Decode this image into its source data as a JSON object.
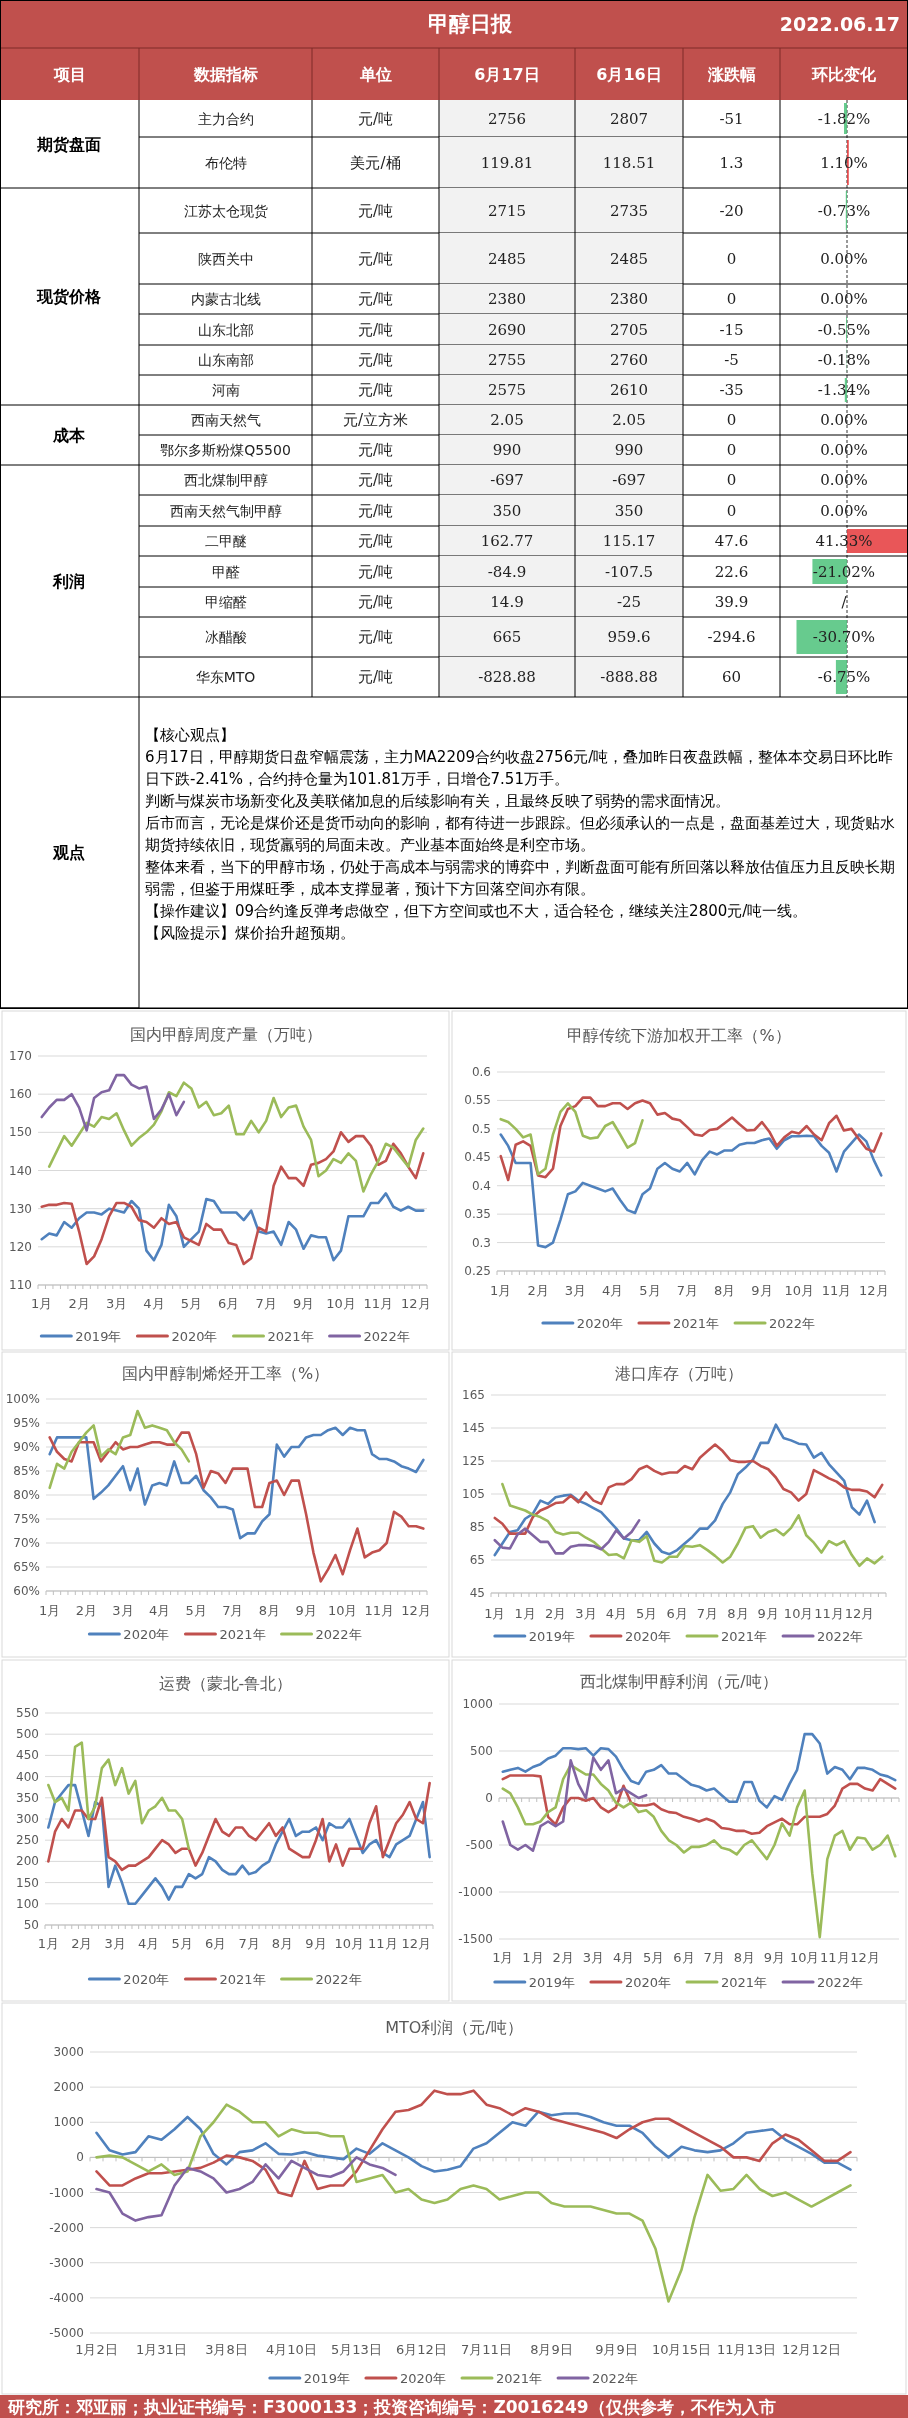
{
  "chart_data": [
    {
      "type": "other",
      "title": "甲醇日报",
      "subtitle": "2022.06.17",
      "cell_labels": [
        [
          "项目",
          "数据指标",
          "单位",
          "6月17日",
          "6月16日",
          "涨跌幅",
          "环比变化"
        ],
        [
          "期货盘面",
          "主力合约",
          "元/吨",
          "2756",
          "2807",
          "-51"
        ],
        [
          null,
          "布伦特",
          "美元/桶",
          "119.81",
          "118.51",
          "1.3"
        ],
        [
          "现货价格",
          "江苏太仓现货",
          "元/吨",
          "2715",
          "2735",
          "-20"
        ],
        [
          null,
          "陕西关中",
          "元/吨",
          "2485",
          "2485",
          "0"
        ],
        [
          null,
          "内蒙古北线",
          "元/吨",
          "2380",
          "2380",
          "0"
        ],
        [
          null,
          "山东北部",
          "元/吨",
          "2690",
          "2705",
          "-15"
        ],
        [
          null,
          "山东南部",
          "元/吨",
          "2755",
          "2760",
          "-5"
        ],
        [
          null,
          "河南",
          "元/吨",
          "2575",
          "2610",
          "-35"
        ],
        [
          "成本",
          "西南天然气",
          "元/立方米",
          "2.05",
          "2.05",
          "0"
        ],
        [
          null,
          "鄂尔多斯粉煤Q5500",
          "元/吨",
          "990",
          "990",
          "0"
        ],
        [
          "利润",
          "西北煤制甲醇",
          "元/吨",
          "-697",
          "-697",
          "0"
        ],
        [
          null,
          "西南天然气制甲醇",
          "元/吨",
          "350",
          "350",
          "0"
        ],
        [
          null,
          "二甲醚",
          "元/吨",
          "162.77",
          "115.17",
          "47.6"
        ],
        [
          null,
          "甲醛",
          "元/吨",
          "-84.9",
          "-107.5",
          "22.6"
        ],
        [
          null,
          "甲缩醛",
          "元/吨",
          "14.9",
          "-25",
          "39.9"
        ],
        [
          null,
          "冰醋酸",
          "元/吨",
          "665",
          "959.6",
          "-294.6"
        ],
        [
          null,
          "华东MTO",
          "元/吨",
          "-828.88",
          "-888.88",
          "60"
        ],
        [
          "观点"
        ]
      ],
      "values": [
        -1.82,
        1.1,
        -0.73,
        0,
        0,
        -0.55,
        -0.18,
        -1.34,
        0,
        0,
        0,
        0,
        41.33,
        -21.02,
        null,
        -30.7,
        -6.75
      ],
      "value_labels": [
        "-1.82%",
        "1.10%",
        "-0.73%",
        "0.00%",
        "0.00%",
        "-0.55%",
        "-0.18%",
        "-1.34%",
        "0.00%",
        "0.00%",
        "0.00%",
        "0.00%",
        "41.33%",
        "-21.02%",
        "/",
        "-30.70%",
        "-6.75%"
      ],
      "colors": [
        "#4cc27a",
        "#e5383b",
        "#4cc27a",
        null,
        null,
        "#4cc27a",
        "#4cc27a",
        "#4cc27a",
        null,
        null,
        null,
        null,
        "#e5383b",
        "#4cc27a",
        null,
        "#4cc27a",
        "#4cc27a"
      ],
      "annotations": [
        "【核心观点】",
        "6月17日，甲醇期货日盘窄幅震荡，主力MA2209合约收盘2756元/吨，叠加昨日夜盘跌幅，整体本交易日环比昨日下跌-2.41%，合约持仓量为101.81万手，日增仓7.51万手。",
        "判断与煤炭市场新变化及美联储加息的后续影响有关，且最终反映了弱势的需求面情况。",
        "后市而言，无论是煤价还是货币动向的影响，都有待进一步跟踪。但必须承认的一点是，盘面基差过大，现货贴水期货持续依旧，现货羸弱的局面未改。产业基本面始终是利空市场。",
        "整体来看，当下的甲醇市场，仍处于高成本与弱需求的博弈中，判断盘面可能有所回落以释放估值压力且反映长期弱需，但鉴于用煤旺季，成本支撑显著，预计下方回落空间亦有限。",
        "【操作建议】09合约逢反弹考虑做空，但下方空间或也不大，适合轻仓，继续关注2800元/吨一线。",
        "【风险提示】煤价抬升超预期。"
      ]
    },
    {
      "type": "line",
      "title": "国内甲醇周度产量（万吨）",
      "legend": "bottom",
      "grid": "y",
      "ylim": [
        110,
        170
      ],
      "yticks": [
        110,
        120,
        130,
        140,
        150,
        160,
        170
      ],
      "categories": [
        "1月",
        null,
        null,
        null,
        null,
        "2月",
        null,
        null,
        null,
        null,
        "3月",
        null,
        null,
        null,
        null,
        "4月",
        null,
        null,
        null,
        null,
        "5月",
        null,
        null,
        null,
        null,
        "6月",
        null,
        null,
        null,
        null,
        "7月",
        null,
        null,
        null,
        null,
        "9月",
        null,
        null,
        null,
        null,
        "10月",
        null,
        null,
        null,
        null,
        "11月",
        null,
        null,
        null,
        null,
        "12月",
        null
      ],
      "series": [
        {
          "name": "2019年",
          "color": "#4f81bd",
          "values": [
            122,
            123.5,
            123,
            126.5,
            125,
            127.5,
            129,
            129,
            128.5,
            130,
            129.5,
            129,
            132,
            130,
            119,
            116.5,
            120.5,
            131,
            128,
            120,
            122,
            124,
            132.5,
            132,
            129,
            129,
            129,
            127,
            129.5,
            124,
            123.5,
            124,
            120.5,
            126.5,
            124.5,
            119.5,
            123,
            122.5,
            122.5,
            116.5,
            119,
            128,
            128,
            128,
            131.5,
            131.5,
            134,
            130.5,
            129.5,
            130.5,
            129.5,
            129.5
          ]
        },
        {
          "name": "2020年",
          "color": "#c0504d",
          "values": [
            130.5,
            131,
            131,
            131.5,
            131.3,
            124,
            115.5,
            117.5,
            122,
            128,
            131.5,
            131.5,
            130.5,
            127,
            126.5,
            125,
            127.5,
            126,
            126.5,
            122.5,
            121.5,
            120.5,
            126,
            124.5,
            124.5,
            121,
            120.5,
            115.5,
            117,
            125,
            124,
            136,
            141,
            138,
            138,
            136,
            141.5,
            142,
            143,
            145,
            150,
            147.5,
            149,
            149,
            146.5,
            141.5,
            142.5,
            147,
            144.5,
            141,
            138,
            144.5
          ]
        },
        {
          "name": "2021年",
          "color": "#9bbb59",
          "values": [
            null,
            141,
            145,
            149,
            146.5,
            149.5,
            152.5,
            151.5,
            154,
            153.5,
            155,
            150.5,
            146.5,
            148.5,
            150,
            152,
            155.5,
            160.5,
            159.5,
            163,
            161.5,
            156.5,
            158,
            154.5,
            155,
            157,
            149.5,
            149.5,
            153,
            150,
            153,
            159,
            154,
            156.5,
            157,
            151.5,
            148,
            138.5,
            140,
            143,
            142,
            144.5,
            142.5,
            134.5,
            139,
            142.5,
            147,
            146,
            143.5,
            141,
            148,
            151
          ]
        },
        {
          "name": "2022年",
          "color": "#8064a2",
          "values": [
            154,
            156.5,
            158.5,
            158.5,
            160,
            156.5,
            150.5,
            159,
            160.5,
            161,
            165,
            165,
            162.5,
            161.5,
            162,
            153.5,
            156,
            160,
            154.5,
            158,
            null,
            null,
            null,
            null,
            null,
            null,
            null,
            null,
            null,
            null,
            null,
            null,
            null,
            null,
            null,
            null,
            null,
            null,
            null,
            null,
            null,
            null,
            null,
            null,
            null,
            null,
            null,
            null,
            null,
            null,
            null,
            null
          ]
        }
      ]
    },
    {
      "type": "line",
      "title": "甲醇传统下游加权开工率（%）",
      "legend": "bottom",
      "grid": "y",
      "ylim": [
        0.25,
        0.6
      ],
      "yticks": [
        0.25,
        0.3,
        0.35,
        0.4,
        0.45,
        0.5,
        0.55,
        0.6
      ],
      "categories": [
        "1月",
        null,
        null,
        null,
        null,
        "2月",
        null,
        null,
        null,
        null,
        "3月",
        null,
        null,
        null,
        null,
        "4月",
        null,
        null,
        null,
        null,
        "5月",
        null,
        null,
        null,
        null,
        "7月",
        null,
        null,
        null,
        null,
        "8月",
        null,
        null,
        null,
        null,
        "9月",
        null,
        null,
        null,
        null,
        "10月",
        null,
        null,
        null,
        null,
        "11月",
        null,
        null,
        null,
        null,
        "12月",
        null
      ],
      "series": [
        {
          "name": "2020年",
          "color": "#4f81bd",
          "values": [
            0.49,
            0.47,
            0.44,
            0.44,
            0.44,
            0.295,
            0.292,
            0.3,
            0.34,
            0.385,
            0.39,
            0.405,
            0.4,
            0.395,
            0.39,
            0.395,
            0.375,
            0.357,
            0.352,
            0.385,
            0.395,
            0.43,
            0.44,
            0.43,
            0.425,
            0.44,
            0.42,
            0.445,
            0.46,
            0.455,
            0.462,
            0.462,
            0.472,
            0.475,
            0.475,
            0.48,
            0.483,
            0.465,
            0.48,
            0.487,
            0.487,
            0.488,
            0.487,
            0.47,
            0.458,
            0.425,
            0.46,
            0.475,
            0.49,
            0.478,
            0.445,
            0.418
          ]
        },
        {
          "name": "2021年",
          "color": "#c0504d",
          "values": [
            0.452,
            0.41,
            0.472,
            0.478,
            0.47,
            0.418,
            0.415,
            0.43,
            0.505,
            0.535,
            0.54,
            0.555,
            0.555,
            0.54,
            0.54,
            0.545,
            0.545,
            0.535,
            0.545,
            0.55,
            0.545,
            0.525,
            0.528,
            0.518,
            0.515,
            0.503,
            0.49,
            0.488,
            0.498,
            0.5,
            0.51,
            0.52,
            0.508,
            0.497,
            0.498,
            0.512,
            0.495,
            0.47,
            0.485,
            0.495,
            0.492,
            0.505,
            0.49,
            0.48,
            0.51,
            0.523,
            0.497,
            0.5,
            0.482,
            0.465,
            0.46,
            0.492
          ]
        },
        {
          "name": "2022年",
          "color": "#9bbb59",
          "values": [
            0.517,
            0.512,
            0.5,
            0.485,
            0.49,
            0.42,
            0.43,
            0.49,
            0.53,
            0.545,
            0.53,
            0.488,
            0.483,
            0.485,
            0.505,
            0.512,
            0.49,
            0.467,
            0.475,
            0.515,
            null,
            null,
            null,
            null,
            null,
            null,
            null,
            null,
            null,
            null,
            null,
            null,
            null,
            null,
            null,
            null,
            null,
            null,
            null,
            null,
            null,
            null,
            null,
            null,
            null,
            null,
            null,
            null,
            null,
            null,
            null,
            null
          ]
        }
      ]
    },
    {
      "type": "line",
      "title": "国内甲醇制烯烃开工率（%）",
      "legend": "bottom",
      "grid": "y",
      "ylim": [
        60,
        100
      ],
      "yticks": [
        {
          "value": 60,
          "label": "60%"
        },
        {
          "value": 65,
          "label": "65%"
        },
        {
          "value": 70,
          "label": "70%"
        },
        {
          "value": 75,
          "label": "75%"
        },
        {
          "value": 80,
          "label": "80%"
        },
        {
          "value": 85,
          "label": "85%"
        },
        {
          "value": 90,
          "label": "90%"
        },
        {
          "value": 95,
          "label": "95%"
        },
        {
          "value": 100,
          "label": "100%"
        }
      ],
      "categories": [
        "1月",
        null,
        null,
        null,
        null,
        "2月",
        null,
        null,
        null,
        null,
        "3月",
        null,
        null,
        null,
        null,
        "4月",
        null,
        null,
        null,
        null,
        "5月",
        null,
        null,
        null,
        null,
        "7月",
        null,
        null,
        null,
        null,
        "8月",
        null,
        null,
        null,
        null,
        "9月",
        null,
        null,
        null,
        null,
        "10月",
        null,
        null,
        null,
        null,
        "11月",
        null,
        null,
        null,
        null,
        "12月",
        null
      ],
      "series": [
        {
          "name": "2020年",
          "color": "#4f81bd",
          "values": [
            88.5,
            92,
            92,
            92,
            92,
            92,
            79.2,
            80.5,
            82,
            84,
            86,
            81,
            85.5,
            78,
            82,
            82.5,
            82,
            87,
            82.5,
            82.5,
            84,
            81,
            79.5,
            77.5,
            77.5,
            77,
            71,
            72,
            72,
            74.5,
            76,
            90.5,
            88,
            90,
            90,
            92,
            92.5,
            92.5,
            93.5,
            94,
            92.5,
            94,
            93.5,
            93.5,
            88.5,
            87.5,
            87.5,
            87,
            86,
            85.5,
            84.8,
            87.3
          ]
        },
        {
          "name": "2021年",
          "color": "#c0504d",
          "values": [
            92,
            89,
            87.5,
            87,
            91,
            91,
            91,
            87,
            89,
            91,
            89.5,
            90,
            90,
            90.5,
            91,
            91,
            90.5,
            90.5,
            93,
            93,
            88.5,
            81.5,
            85,
            84.5,
            82.5,
            85.5,
            85.5,
            85.5,
            77.5,
            77.5,
            82.5,
            83,
            80,
            83,
            83,
            76,
            68,
            62,
            64.5,
            67.5,
            63.5,
            68.5,
            73,
            67,
            68,
            68.5,
            70,
            76.5,
            75.5,
            73.5,
            73.5,
            73
          ]
        },
        {
          "name": "2022年",
          "color": "#9bbb59",
          "values": [
            81.5,
            86.5,
            85.5,
            89,
            91,
            93,
            94.5,
            88,
            89.5,
            88.5,
            92,
            92.5,
            97.5,
            94,
            94.5,
            94,
            93.5,
            91,
            89.5,
            87,
            null,
            null,
            null,
            null,
            null,
            null,
            null,
            null,
            null,
            null,
            null,
            null,
            null,
            null,
            null,
            null,
            null,
            null,
            null,
            null,
            null,
            null,
            null,
            null,
            null,
            null,
            null,
            null,
            null,
            null,
            null,
            null
          ]
        }
      ]
    },
    {
      "type": "line",
      "title": "港口库存（万吨）",
      "legend": "bottom",
      "grid": "y",
      "ylim": [
        45,
        165
      ],
      "yticks": [
        45,
        65,
        85,
        105,
        125,
        145,
        165
      ],
      "categories": [
        "1月",
        null,
        null,
        null,
        "1月",
        null,
        null,
        null,
        "2月",
        null,
        null,
        null,
        "3月",
        null,
        null,
        null,
        "4月",
        null,
        null,
        null,
        "5月",
        null,
        null,
        null,
        "6月",
        null,
        null,
        null,
        "7月",
        null,
        null,
        null,
        "8月",
        null,
        null,
        null,
        "9月",
        null,
        null,
        null,
        "10月",
        null,
        null,
        null,
        "11月",
        null,
        null,
        null,
        "12月",
        null,
        null,
        null
      ],
      "series": [
        {
          "name": "2019年",
          "color": "#4f81bd",
          "values": [
            68,
            75,
            82,
            83,
            90,
            93,
            101,
            99,
            103,
            104,
            104.5,
            101,
            99,
            96.5,
            94,
            89,
            84,
            78,
            77,
            77,
            82,
            75,
            70,
            68.5,
            71,
            75,
            79,
            84,
            84,
            89,
            99,
            106,
            117,
            121,
            126,
            136,
            136,
            147,
            139,
            137.5,
            135.5,
            135,
            127,
            130,
            123,
            118,
            113,
            97,
            92.5,
            101,
            88,
            null
          ]
        },
        {
          "name": "2020年",
          "color": "#c0504d",
          "values": [
            90.5,
            87,
            81,
            81,
            81,
            91,
            95,
            97,
            99.5,
            100,
            104,
            100,
            106,
            101,
            99,
            109,
            111,
            111,
            114,
            120,
            122,
            119,
            117,
            118,
            118,
            122,
            120,
            127,
            131,
            135,
            131,
            125.5,
            124.5,
            124.5,
            125,
            122,
            120,
            115,
            108,
            106,
            101,
            105,
            119.5,
            117,
            114.5,
            112.5,
            109,
            107.5,
            107.5,
            106.5,
            103,
            110.5
          ]
        },
        {
          "name": "2021年",
          "color": "#9bbb59",
          "values": [
            null,
            111,
            98,
            96.5,
            95,
            92.5,
            91,
            88.5,
            82,
            80.5,
            81.5,
            81.5,
            78.5,
            76,
            72,
            68,
            68.5,
            66,
            77,
            76,
            79.5,
            64.5,
            63.5,
            67,
            67,
            73.5,
            73,
            74,
            71,
            67.5,
            63.5,
            67,
            75,
            84.5,
            85.5,
            78.5,
            82,
            83.5,
            80,
            84.5,
            92,
            80,
            75.5,
            69.5,
            76.5,
            74,
            76.5,
            68,
            61.5,
            66,
            63,
            67
          ]
        },
        {
          "name": "2022年",
          "color": "#8064a2",
          "values": [
            77,
            72.5,
            72,
            80.5,
            84,
            80,
            76,
            76,
            69,
            69,
            73,
            74,
            74,
            73.5,
            71.5,
            76,
            83,
            78,
            82,
            89,
            null,
            null,
            null,
            null,
            null,
            null,
            null,
            null,
            null,
            null,
            null,
            null,
            null,
            null,
            null,
            null,
            null,
            null,
            null,
            null,
            null,
            null,
            null,
            null,
            null,
            null,
            null,
            null,
            null,
            null,
            null,
            null
          ]
        }
      ]
    },
    {
      "type": "line",
      "title": "运费（蒙北-鲁北）",
      "legend": "bottom",
      "grid": "y",
      "ylim": [
        50,
        550
      ],
      "yticks": [
        50,
        100,
        150,
        200,
        250,
        300,
        350,
        400,
        450,
        500,
        550
      ],
      "categories": [
        "1月",
        null,
        null,
        null,
        null,
        "2月",
        null,
        null,
        null,
        null,
        "3月",
        null,
        null,
        null,
        null,
        "4月",
        null,
        null,
        null,
        null,
        "5月",
        null,
        null,
        null,
        null,
        "6月",
        null,
        null,
        null,
        null,
        "7月",
        null,
        null,
        null,
        null,
        "8月",
        null,
        null,
        null,
        null,
        "9月",
        null,
        null,
        null,
        null,
        "10月",
        null,
        null,
        null,
        null,
        "11月",
        null,
        null,
        null,
        null,
        "12月",
        null,
        null
      ],
      "series": [
        {
          "name": "2020年",
          "color": "#4f81bd",
          "values": [
            280,
            340,
            360,
            380,
            380,
            320,
            260,
            340,
            330,
            140,
            190,
            150,
            100,
            100,
            120,
            140,
            160,
            140,
            110,
            140,
            140,
            170,
            160,
            170,
            210,
            200,
            180,
            170,
            170,
            190,
            170,
            175,
            190,
            200,
            240,
            270,
            300,
            260,
            270,
            270,
            280,
            250,
            290,
            280,
            280,
            300,
            260,
            220,
            240,
            250,
            220,
            210,
            240,
            250,
            260,
            300,
            340,
            210
          ]
        },
        {
          "name": "2021年",
          "color": "#c0504d",
          "values": [
            200,
            270,
            300,
            280,
            320,
            320,
            300,
            300,
            350,
            210,
            200,
            180,
            190,
            190,
            200,
            210,
            230,
            250,
            240,
            220,
            230,
            230,
            190,
            220,
            260,
            300,
            270,
            260,
            280,
            280,
            260,
            250,
            270,
            290,
            260,
            280,
            230,
            220,
            210,
            210,
            250,
            300,
            200,
            240,
            190,
            230,
            230,
            230,
            290,
            330,
            210,
            250,
            290,
            310,
            340,
            300,
            290,
            385
          ]
        },
        {
          "name": "2022年",
          "color": "#9bbb59",
          "values": [
            380,
            340,
            350,
            320,
            470,
            480,
            300,
            330,
            420,
            440,
            380,
            420,
            360,
            390,
            290,
            320,
            330,
            350,
            320,
            320,
            300,
            230,
            null,
            null,
            null,
            null,
            null,
            null,
            null,
            null,
            null,
            null,
            null,
            null,
            null,
            null,
            null,
            null,
            null,
            null,
            null,
            null,
            null,
            null,
            null,
            null,
            null,
            null,
            null,
            null,
            null,
            null,
            null,
            null,
            null,
            null,
            null,
            null
          ]
        }
      ]
    },
    {
      "type": "line",
      "title": "西北煤制甲醇利润（元/吨）",
      "legend": "bottom",
      "grid": "y",
      "ylim": [
        -1500,
        1000
      ],
      "yticks": [
        -1500,
        -1000,
        -500,
        0,
        500,
        1000
      ],
      "categories": [
        "1月",
        null,
        null,
        null,
        "1月",
        null,
        null,
        null,
        "2月",
        null,
        null,
        null,
        "3月",
        null,
        null,
        null,
        "4月",
        null,
        null,
        null,
        "5月",
        null,
        null,
        null,
        "6月",
        null,
        null,
        null,
        "7月",
        null,
        null,
        null,
        "8月",
        null,
        null,
        null,
        "9月",
        null,
        null,
        null,
        "10月",
        null,
        null,
        null,
        "11月",
        null,
        null,
        null,
        "12月",
        null,
        null,
        null,
        null
      ],
      "series": [
        {
          "name": "2019年",
          "color": "#4f81bd",
          "values": [
            280,
            300,
            320,
            280,
            330,
            360,
            420,
            450,
            530,
            530,
            520,
            530,
            450,
            530,
            520,
            440,
            300,
            180,
            150,
            280,
            300,
            350,
            260,
            260,
            200,
            140,
            120,
            80,
            100,
            30,
            -40,
            -40,
            170,
            170,
            -30,
            -100,
            20,
            -20,
            150,
            300,
            680,
            680,
            580,
            260,
            330,
            300,
            200,
            320,
            320,
            300,
            250,
            230,
            190
          ]
        },
        {
          "name": "2020年",
          "color": "#c0504d",
          "values": [
            200,
            240,
            240,
            240,
            240,
            230,
            -200,
            -280,
            -100,
            0,
            0,
            -30,
            0,
            -100,
            -150,
            -100,
            130,
            -50,
            -80,
            -80,
            -60,
            -120,
            -150,
            -160,
            -200,
            -220,
            -250,
            -220,
            -250,
            -320,
            -330,
            -350,
            -350,
            -380,
            -370,
            -300,
            -260,
            -220,
            -280,
            -280,
            -200,
            -200,
            -200,
            -170,
            -80,
            100,
            150,
            150,
            100,
            80,
            200,
            150,
            100
          ]
        },
        {
          "name": "2021年",
          "color": "#9bbb59",
          "values": [
            100,
            50,
            -100,
            -280,
            -280,
            -250,
            -150,
            -100,
            200,
            350,
            300,
            250,
            250,
            150,
            80,
            -50,
            -100,
            -50,
            -150,
            -130,
            -200,
            -350,
            -450,
            -500,
            -580,
            -520,
            -520,
            -500,
            -450,
            -530,
            -550,
            -600,
            -500,
            -450,
            -550,
            -650,
            -500,
            -270,
            -400,
            -100,
            80,
            -800,
            -1480,
            -650,
            -400,
            -350,
            -550,
            -420,
            -430,
            -550,
            -500,
            -400,
            -620
          ]
        },
        {
          "name": "2022年",
          "color": "#8064a2",
          "values": [
            -250,
            -500,
            -550,
            -500,
            -560,
            -300,
            -250,
            -300,
            -250,
            400,
            150,
            0,
            430,
            300,
            400,
            50,
            100,
            50,
            0,
            30,
            null,
            null,
            null,
            null,
            null,
            null,
            null,
            null,
            null,
            null,
            null,
            null,
            null,
            null,
            null,
            null,
            null,
            null,
            null,
            null,
            null,
            null,
            null,
            null,
            null,
            null,
            null,
            null,
            null,
            null,
            null,
            null,
            null
          ]
        }
      ]
    },
    {
      "type": "line",
      "title": "MTO利润（元/吨）",
      "legend": "bottom",
      "grid": "y",
      "ylim": [
        -5000,
        3000
      ],
      "yticks": [
        -5000,
        -4000,
        -3000,
        -2000,
        -1000,
        0,
        1000,
        2000,
        3000
      ],
      "categories": [
        "1月2日",
        null,
        null,
        null,
        null,
        "1月31日",
        null,
        null,
        null,
        null,
        "3月8日",
        null,
        null,
        null,
        null,
        "4月10日",
        null,
        null,
        null,
        null,
        "5月13日",
        null,
        null,
        null,
        null,
        "6月12日",
        null,
        null,
        null,
        null,
        "7月11日",
        null,
        null,
        null,
        null,
        "8月9日",
        null,
        null,
        null,
        null,
        "9月9日",
        null,
        null,
        null,
        null,
        "10月15日",
        null,
        null,
        null,
        null,
        "11月13日",
        null,
        null,
        null,
        null,
        "12月12日",
        null,
        null,
        null
      ],
      "series": [
        {
          "name": "2019年",
          "color": "#4f81bd",
          "values": [
            700,
            200,
            80,
            150,
            600,
            500,
            800,
            1150,
            800,
            100,
            -200,
            150,
            200,
            400,
            100,
            80,
            150,
            50,
            0,
            -50,
            250,
            100,
            400,
            200,
            0,
            -250,
            -400,
            -350,
            -250,
            250,
            400,
            700,
            1000,
            900,
            1300,
            1200,
            1250,
            1250,
            1150,
            1000,
            900,
            900,
            700,
            300,
            0,
            300,
            200,
            150,
            200,
            400,
            700,
            750,
            800,
            500,
            300,
            100,
            -150,
            -150,
            -350
          ]
        },
        {
          "name": "2020年",
          "color": "#c0504d",
          "values": [
            -400,
            -800,
            -800,
            -600,
            -450,
            -450,
            -400,
            -350,
            -300,
            -150,
            50,
            0,
            -100,
            -350,
            -1000,
            -1100,
            -100,
            -900,
            -800,
            -800,
            -400,
            200,
            800,
            1300,
            1350,
            1500,
            1900,
            1800,
            1800,
            1900,
            1500,
            1400,
            1200,
            1400,
            1300,
            1100,
            1000,
            900,
            800,
            700,
            550,
            800,
            1000,
            1100,
            1100,
            900,
            700,
            500,
            300,
            0,
            0,
            -100,
            400,
            650,
            500,
            200,
            -100,
            -100,
            150
          ]
        },
        {
          "name": "2021年",
          "color": "#9bbb59",
          "values": [
            0,
            50,
            0,
            -200,
            -400,
            -200,
            -500,
            -400,
            600,
            1000,
            1500,
            1300,
            1000,
            1000,
            600,
            800,
            700,
            700,
            600,
            600,
            -700,
            -600,
            -500,
            -1000,
            -900,
            -1200,
            -1300,
            -1200,
            -900,
            -800,
            -900,
            -1200,
            -1100,
            -1000,
            -1000,
            -1300,
            -1400,
            -1400,
            -1400,
            -1500,
            -1600,
            -1600,
            -1800,
            -2600,
            -4100,
            -3200,
            -1700,
            -500,
            -950,
            -900,
            -500,
            -900,
            -1100,
            -1000,
            -1200,
            -1400,
            -1200,
            -1000,
            -800
          ]
        },
        {
          "name": "2022年",
          "color": "#8064a2",
          "values": [
            -900,
            -1000,
            -1600,
            -1800,
            -1700,
            -1650,
            -800,
            -300,
            -400,
            -600,
            -1000,
            -900,
            -700,
            -200,
            -600,
            -100,
            -300,
            -500,
            -550,
            -400,
            0,
            -200,
            -300,
            -500,
            null,
            null,
            null,
            null,
            null,
            null,
            null,
            null,
            null,
            null,
            null,
            null,
            null,
            null,
            null,
            null,
            null,
            null,
            null,
            null,
            null,
            null,
            null,
            null,
            null,
            null,
            null,
            null,
            null,
            null,
            null,
            null,
            null,
            null,
            null
          ]
        }
      ],
      "annotations": [
        "研究所：邓亚丽；执业证书编号：F3000133；投资咨询编号：Z0016249（仅供参考，不作为入市"
      ]
    }
  ]
}
